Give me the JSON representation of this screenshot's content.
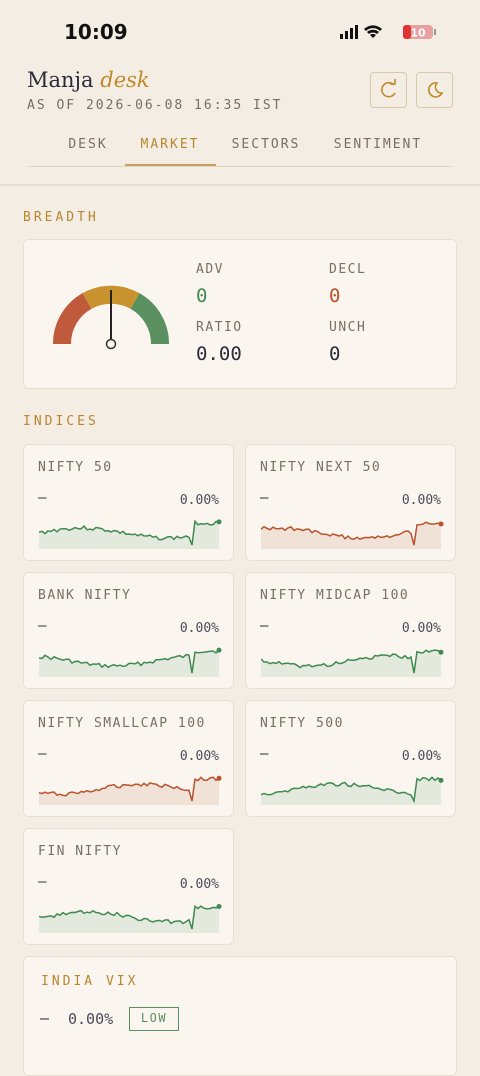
{
  "status": {
    "time": "10:09",
    "battery": "10"
  },
  "header": {
    "brand": "Manja",
    "brand_accent": "desk",
    "as_of": "AS OF 2026-06-08 16:35 IST"
  },
  "tabs": {
    "items": [
      "DESK",
      "MARKET",
      "SECTORS",
      "SENTIMENT"
    ],
    "active": 1
  },
  "breadth": {
    "title": "BREADTH",
    "stats": [
      {
        "label": "ADV",
        "value": 0,
        "color": "#3f8a50"
      },
      {
        "label": "DECL",
        "value": 0,
        "color": "#b8532c"
      },
      {
        "label": "RATIO",
        "value": "0.00",
        "color": "#2b2b3a"
      },
      {
        "label": "UNCH",
        "value": 0,
        "color": "#2b2b3a"
      }
    ]
  },
  "indices": {
    "title": "INDICES",
    "items": [
      {
        "name": "NIFTY 50",
        "dash": "—",
        "change": "0.00%",
        "color": "#3f8a50"
      },
      {
        "name": "NIFTY NEXT 50",
        "dash": "—",
        "change": "0.00%",
        "color": "#b8532c"
      },
      {
        "name": "BANK NIFTY",
        "dash": "—",
        "change": "0.00%",
        "color": "#3f8a50"
      },
      {
        "name": "NIFTY MIDCAP 100",
        "dash": "—",
        "change": "0.00%",
        "color": "#3f8a50"
      },
      {
        "name": "NIFTY SMALLCAP 100",
        "dash": "—",
        "change": "0.00%",
        "color": "#b8532c"
      },
      {
        "name": "NIFTY 500",
        "dash": "—",
        "change": "0.00%",
        "color": "#3f8a50"
      },
      {
        "name": "FIN NIFTY",
        "dash": "—",
        "change": "0.00%",
        "color": "#3f8a50"
      }
    ]
  },
  "vix": {
    "title": "INDIA VIX",
    "dash": "—",
    "change": "0.00%",
    "level": "LOW"
  }
}
